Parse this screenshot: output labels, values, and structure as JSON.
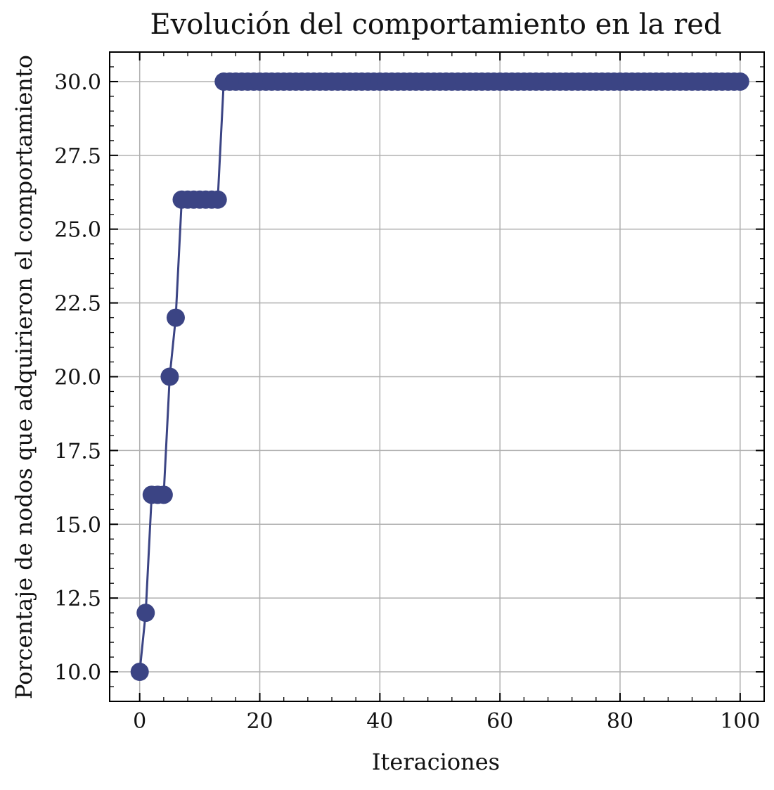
{
  "chart_data": {
    "type": "line",
    "title": "Evolución del comportamiento en la red",
    "xlabel": "Iteraciones",
    "ylabel": "Porcentaje de nodos que adquirieron el comportamiento",
    "xlim": [
      -5,
      104
    ],
    "ylim": [
      9,
      31
    ],
    "xticks": [
      0,
      20,
      40,
      60,
      80,
      100
    ],
    "xtick_labels": [
      "0",
      "20",
      "40",
      "60",
      "80",
      "100"
    ],
    "yticks": [
      10,
      12.5,
      15,
      17.5,
      20,
      22.5,
      25,
      27.5,
      30
    ],
    "ytick_labels": [
      "10.0",
      "12.5",
      "15.0",
      "17.5",
      "20.0",
      "22.5",
      "25.0",
      "27.5",
      "30.0"
    ],
    "grid": true,
    "marker": "circle",
    "colors": {
      "series": "#3b4484"
    },
    "series": [
      {
        "x": [
          0,
          1,
          2,
          3,
          4,
          5,
          6,
          7,
          8,
          9,
          10,
          11,
          12,
          13,
          14,
          15,
          16,
          17,
          18,
          19,
          20,
          21,
          22,
          23,
          24,
          25,
          26,
          27,
          28,
          29,
          30,
          31,
          32,
          33,
          34,
          35,
          36,
          37,
          38,
          39,
          40,
          41,
          42,
          43,
          44,
          45,
          46,
          47,
          48,
          49,
          50,
          51,
          52,
          53,
          54,
          55,
          56,
          57,
          58,
          59,
          60,
          61,
          62,
          63,
          64,
          65,
          66,
          67,
          68,
          69,
          70,
          71,
          72,
          73,
          74,
          75,
          76,
          77,
          78,
          79,
          80,
          81,
          82,
          83,
          84,
          85,
          86,
          87,
          88,
          89,
          90,
          91,
          92,
          93,
          94,
          95,
          96,
          97,
          98,
          99,
          100
        ],
        "values": [
          10,
          12,
          16,
          16,
          16,
          20,
          22,
          26,
          26,
          26,
          26,
          26,
          26,
          26,
          30,
          30,
          30,
          30,
          30,
          30,
          30,
          30,
          30,
          30,
          30,
          30,
          30,
          30,
          30,
          30,
          30,
          30,
          30,
          30,
          30,
          30,
          30,
          30,
          30,
          30,
          30,
          30,
          30,
          30,
          30,
          30,
          30,
          30,
          30,
          30,
          30,
          30,
          30,
          30,
          30,
          30,
          30,
          30,
          30,
          30,
          30,
          30,
          30,
          30,
          30,
          30,
          30,
          30,
          30,
          30,
          30,
          30,
          30,
          30,
          30,
          30,
          30,
          30,
          30,
          30,
          30,
          30,
          30,
          30,
          30,
          30,
          30,
          30,
          30,
          30,
          30,
          30,
          30,
          30,
          30,
          30,
          30,
          30,
          30,
          30,
          30
        ]
      }
    ]
  }
}
